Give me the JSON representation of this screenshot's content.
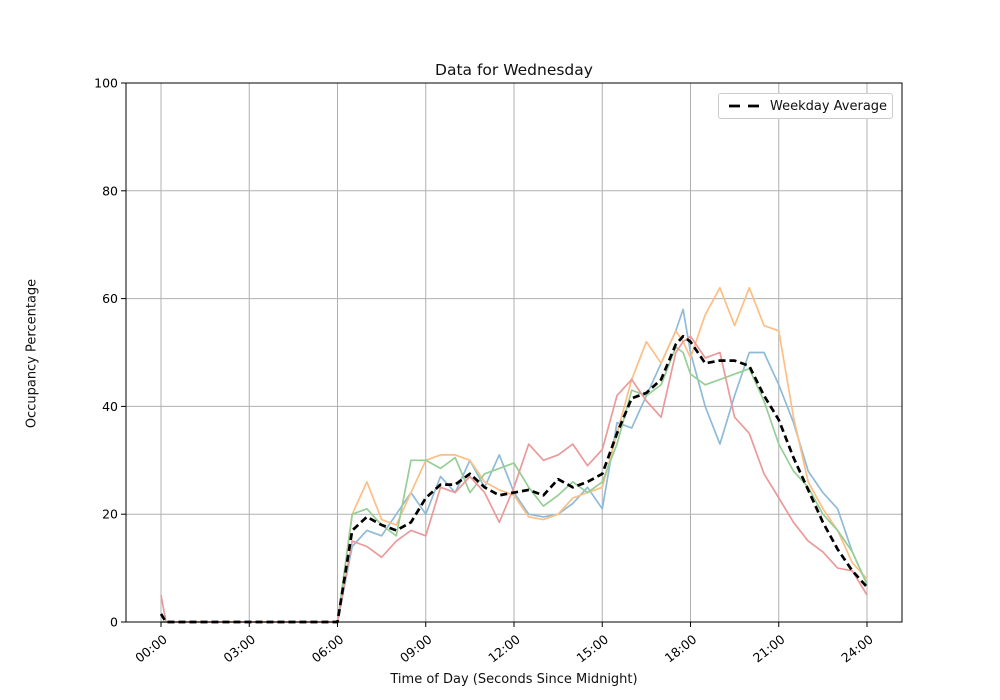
{
  "figure": {
    "title": "Data for Wednesday"
  },
  "chart_data": {
    "type": "line",
    "title": "Data for Wednesday",
    "xlabel": "Time of Day (Seconds Since Midnight)",
    "ylabel": "Occupancy Percentage",
    "ylim": [
      0,
      100
    ],
    "grid": true,
    "yticks": [
      0,
      20,
      40,
      60,
      80,
      100
    ],
    "xticks": {
      "hours": [
        0,
        3,
        6,
        9,
        12,
        15,
        18,
        21,
        24
      ],
      "labels": [
        "00:00",
        "03:00",
        "06:00",
        "09:00",
        "12:00",
        "15:00",
        "18:00",
        "21:00",
        "24:00"
      ]
    },
    "legend": {
      "position": "upper right",
      "entries": [
        {
          "label": "Weekday Average",
          "color": "#000000",
          "style": "dashed"
        }
      ]
    },
    "colors": {
      "grid": "#b0b0b0",
      "spine": "#000000",
      "background": "#ffffff"
    },
    "x_hours": [
      0,
      0.17,
      0.5,
      1,
      1.5,
      2,
      2.5,
      3,
      3.5,
      4,
      4.5,
      5,
      5.5,
      6,
      6.5,
      7,
      7.5,
      8,
      8.5,
      9,
      9.5,
      10,
      10.5,
      11,
      11.5,
      12,
      12.5,
      13,
      13.5,
      14,
      14.5,
      15,
      15.5,
      16,
      16.5,
      17,
      17.5,
      17.75,
      18,
      18.5,
      19,
      19.5,
      20,
      20.5,
      21,
      21.5,
      22,
      22.5,
      23,
      23.5,
      24
    ],
    "series": [
      {
        "name": "blue",
        "color": "#8fbbd9",
        "width": 1.7,
        "dashed": false,
        "values": [
          0,
          0,
          0,
          0,
          0,
          0,
          0,
          0,
          0,
          0,
          0,
          0,
          0,
          0,
          14,
          17,
          16,
          20,
          24,
          20,
          27,
          24,
          30,
          25,
          31,
          24,
          20,
          19.5,
          20,
          22,
          25,
          21,
          37,
          36,
          42,
          48,
          54,
          58,
          50,
          40,
          33,
          42,
          50,
          50,
          44,
          37,
          28,
          24,
          21,
          13,
          7
        ]
      },
      {
        "name": "orange",
        "color": "#fdbf85",
        "width": 1.7,
        "dashed": false,
        "values": [
          0,
          0,
          0,
          0,
          0,
          0,
          0,
          0,
          0,
          0,
          0,
          0,
          0,
          0,
          20,
          26,
          19,
          18,
          24,
          30,
          31,
          31,
          30,
          26,
          24.5,
          23.5,
          19.5,
          19,
          20,
          23,
          24,
          25,
          35,
          45,
          52,
          48,
          54,
          52,
          49,
          57,
          62,
          55,
          62,
          55,
          54,
          38,
          26,
          21,
          17,
          11,
          8
        ]
      },
      {
        "name": "green",
        "color": "#95cf95",
        "width": 1.7,
        "dashed": false,
        "values": [
          0,
          0,
          0,
          0,
          0,
          0,
          0,
          0,
          0,
          0,
          0,
          0,
          0,
          0,
          20,
          21,
          18,
          16,
          30,
          30,
          28.5,
          30.5,
          24,
          27.5,
          28.5,
          29.5,
          25,
          21.5,
          23.5,
          26,
          24,
          26,
          33,
          43,
          42,
          44,
          51,
          50,
          46,
          44,
          45,
          46,
          47,
          41,
          33,
          28,
          25,
          20,
          17,
          13,
          7
        ]
      },
      {
        "name": "red",
        "color": "#eb9a9a",
        "width": 1.7,
        "dashed": false,
        "values": [
          5,
          0,
          0,
          0,
          0,
          0,
          0,
          0,
          0,
          0,
          0,
          0,
          0,
          0,
          15,
          14,
          12,
          15,
          17,
          16,
          25,
          24,
          27,
          24,
          18.5,
          25,
          33,
          30,
          31,
          33,
          29,
          32,
          42,
          45,
          41,
          38,
          50,
          52,
          53,
          49,
          50,
          38,
          35,
          27.5,
          23,
          18.5,
          15,
          13,
          10,
          9.5,
          5
        ]
      },
      {
        "name": "weekday-average",
        "color": "#000000",
        "width": 2.7,
        "dashed": true,
        "values": [
          1.5,
          0,
          0,
          0,
          0,
          0,
          0,
          0,
          0,
          0,
          0,
          0,
          0,
          0,
          17,
          19.5,
          18,
          17,
          18.5,
          23,
          25.5,
          25.5,
          27.5,
          25,
          23.5,
          24,
          24.5,
          23.5,
          26.5,
          25,
          26,
          27.5,
          35,
          41.5,
          42.5,
          45,
          51.5,
          53,
          52,
          48,
          48.5,
          48.5,
          47.5,
          42,
          37.5,
          30.5,
          24.5,
          18.5,
          13.5,
          9.5,
          6.5
        ]
      }
    ]
  }
}
